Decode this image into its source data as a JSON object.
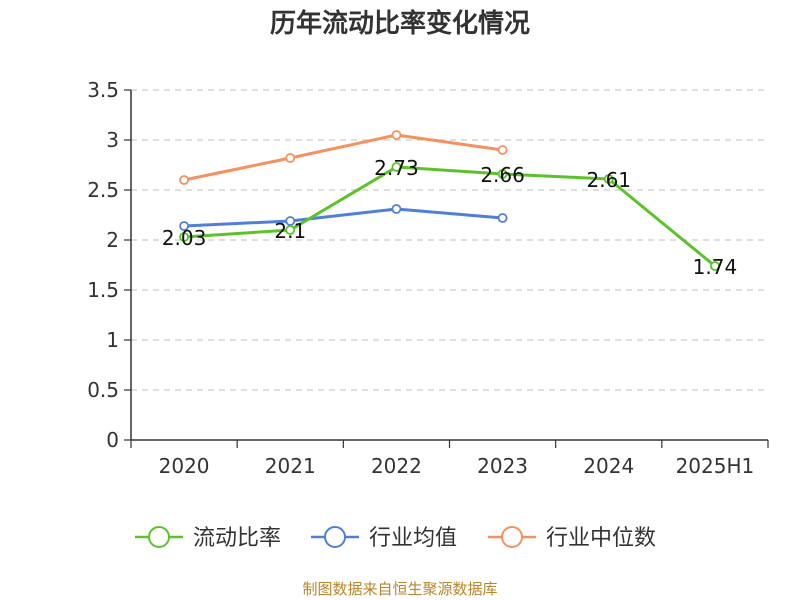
{
  "chart_data": {
    "type": "line",
    "title": "历年流动比率变化情况",
    "categories": [
      "2020",
      "2021",
      "2022",
      "2023",
      "2024",
      "2025H1"
    ],
    "ylim": [
      0,
      3.5
    ],
    "yticks": [
      "0",
      "0.5",
      "1",
      "1.5",
      "2",
      "2.5",
      "3",
      "3.5"
    ],
    "grid": true,
    "legend_position": "bottom",
    "series": [
      {
        "name": "流动比率",
        "color": "#5cc22a",
        "values": [
          2.03,
          2.1,
          2.73,
          2.66,
          2.61,
          1.74
        ],
        "labels": [
          "2.03",
          "2.1",
          "2.73",
          "2.66",
          "2.61",
          "1.74"
        ]
      },
      {
        "name": "行业均值",
        "color": "#4f7fd9",
        "values": [
          2.14,
          2.19,
          2.31,
          2.22,
          null,
          null
        ]
      },
      {
        "name": "行业中位数",
        "color": "#f5915f",
        "values": [
          2.6,
          2.82,
          3.05,
          2.9,
          null,
          null
        ]
      }
    ]
  },
  "source": "制图数据来自恒生聚源数据库"
}
